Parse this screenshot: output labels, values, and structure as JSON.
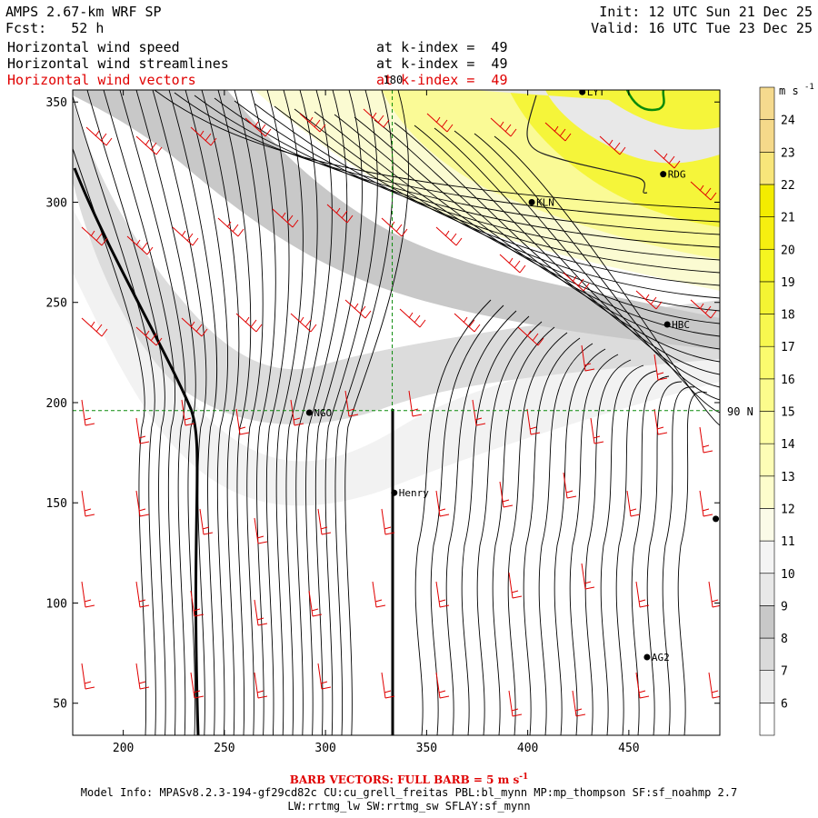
{
  "header": {
    "model": "AMPS 2.67-km WRF SP",
    "fcst": "Fcst:   52 h",
    "init": "Init: 12 UTC Sun 21 Dec 25",
    "valid": "Valid: 16 UTC Tue 23 Dec 25",
    "fields": [
      {
        "name": "Horizontal wind speed",
        "level": "at k-index =  49",
        "color": "#000000"
      },
      {
        "name": "Horizontal wind streamlines",
        "level": "at k-index =  49",
        "color": "#000000"
      },
      {
        "name": "Horizontal wind vectors",
        "level": "at k-index =  49",
        "color": "#e00000"
      }
    ]
  },
  "map": {
    "x_ticks": [
      200,
      250,
      300,
      350,
      400,
      450
    ],
    "y_ticks": [
      50,
      100,
      150,
      200,
      250,
      300,
      350
    ],
    "x_range": [
      175,
      495
    ],
    "y_range": [
      34,
      356
    ],
    "meridian_label": "180",
    "parallel_label": "90 N",
    "stations": [
      {
        "name": "NGO",
        "x": 292,
        "y": 195
      },
      {
        "name": "Henry",
        "x": 334,
        "y": 155
      },
      {
        "name": "KLN",
        "x": 402,
        "y": 300
      },
      {
        "name": "RDG",
        "x": 467,
        "y": 314
      },
      {
        "name": "HBC",
        "x": 469,
        "y": 239
      },
      {
        "name": "AG2",
        "x": 459,
        "y": 73
      },
      {
        "name": "LYT",
        "x": 427,
        "y": 355
      },
      {
        "name": "",
        "x": 493,
        "y": 142
      }
    ]
  },
  "colorbar": {
    "unit": "m s",
    "unit_exp": "-1",
    "labels": [
      "6",
      "7",
      "8",
      "9",
      "10",
      "11",
      "12",
      "13",
      "14",
      "15",
      "16",
      "17",
      "18",
      "19",
      "20",
      "21",
      "22",
      "23",
      "24"
    ],
    "colors": [
      "#ffffff",
      "#ececec",
      "#dadada",
      "#c8c8c8",
      "#e8e8e8",
      "#f4f4f4",
      "#fbfbe8",
      "#fdfdcc",
      "#fdfdb6",
      "#fefea4",
      "#fcfc8c",
      "#fbfb6e",
      "#f8f84f",
      "#f4f433",
      "#f5f520",
      "#f6ef10",
      "#f3ec00",
      "#f8e67a",
      "#f5d98a",
      "#f5da8e"
    ]
  },
  "footer": {
    "barb_note_prefix": "BARB VECTORS:  FULL BARB = 5 m s",
    "barb_note_exp": "-1",
    "model_info": "Model Info: MPASv8.2.3-194-gf29cd82c CU:cu_grell_freitas PBL:bl_mynn MP:mp_thompson SF:sf_noahmp 2.7",
    "model_info2": "LW:rrtmg_lw SW:rrtmg_sw SFLAY:sf_mynn"
  }
}
